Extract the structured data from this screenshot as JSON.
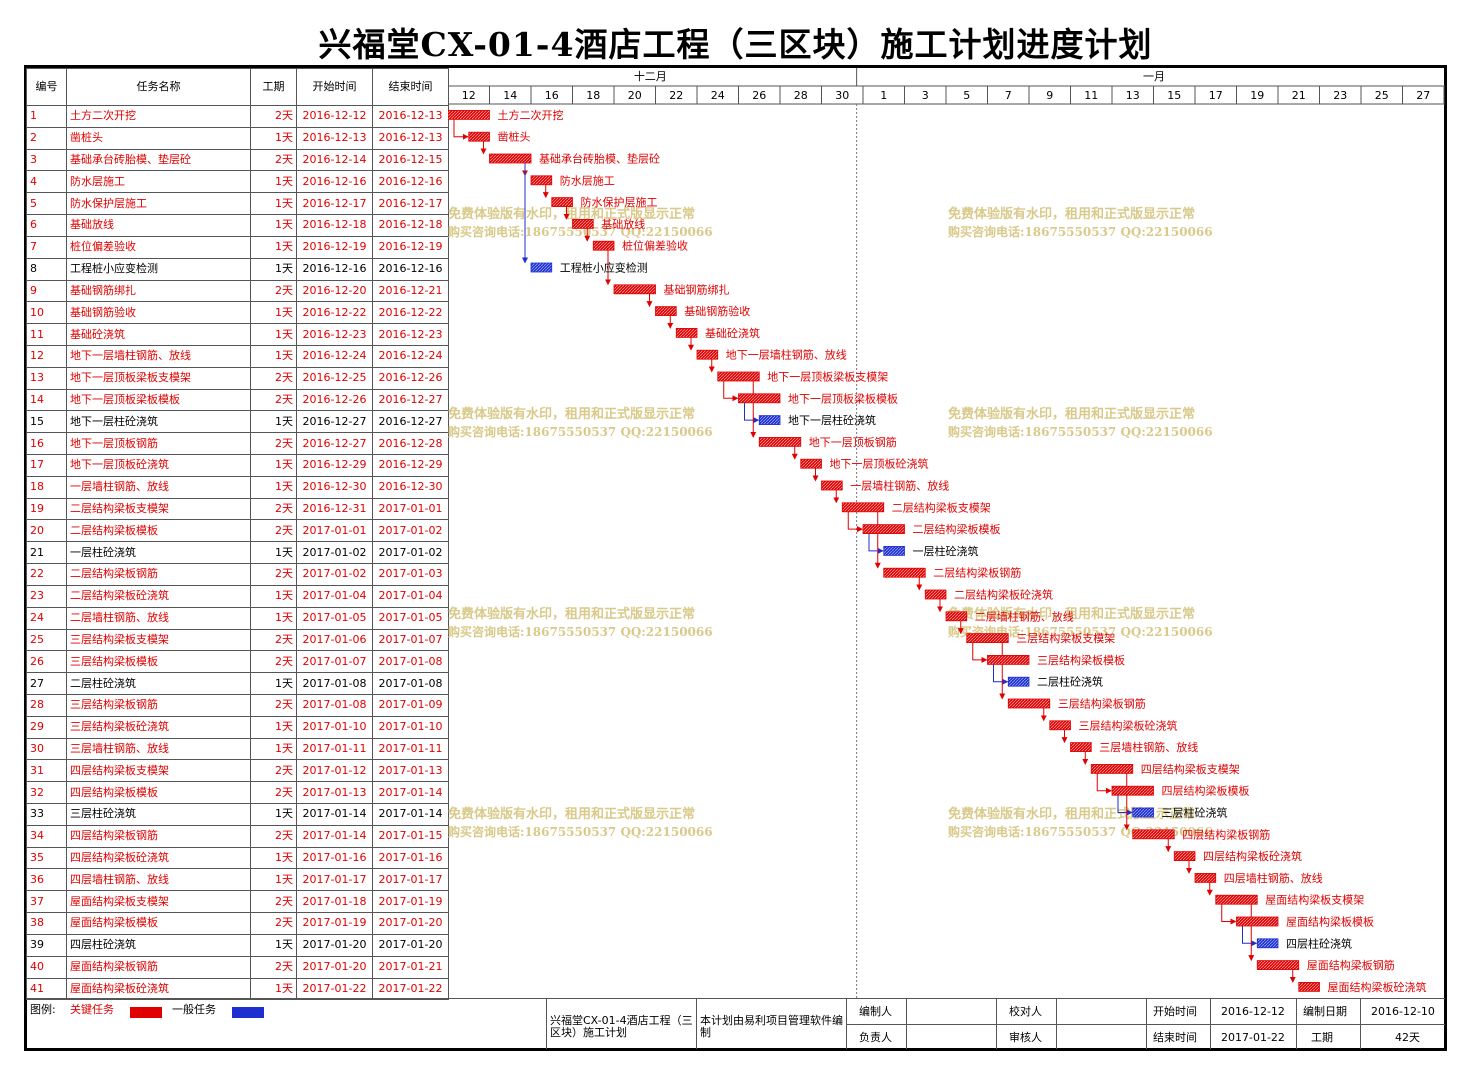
{
  "title": "兴福堂CX-01-4酒店工程（三区块）施工计划进度计划",
  "columns": {
    "no": "编号",
    "name": "任务名称",
    "dur": "工期",
    "start": "开始时间",
    "end": "结束时间"
  },
  "months": [
    "十二月",
    "一月"
  ],
  "day_labels": [
    "12",
    "14",
    "16",
    "18",
    "20",
    "22",
    "24",
    "26",
    "28",
    "30",
    "1",
    "3",
    "5",
    "7",
    "9",
    "11",
    "13",
    "15",
    "17",
    "19",
    "21",
    "23",
    "25",
    "27"
  ],
  "watermark": {
    "line1": "免费体验版有水印，租用和正式版显示正常",
    "line2": "购买咨询电话:18675550537 QQ:22150066"
  },
  "colors": {
    "critical": "#e00000",
    "normal": "#1f2fcf",
    "link_critical": "#e00000",
    "link_normal": "#1f2fcf",
    "watermark": "#d9c98a"
  },
  "chart_data": {
    "type": "gantt",
    "x_range": [
      "2016-12-12",
      "2017-01-28"
    ],
    "tasks": [
      {
        "no": "1",
        "name": "土方二次开挖",
        "dur": "2天",
        "start": "2016-12-12",
        "end": "2016-12-13",
        "critical": true,
        "pred": []
      },
      {
        "no": "2",
        "name": "凿桩头",
        "dur": "1天",
        "start": "2016-12-13",
        "end": "2016-12-13",
        "critical": true,
        "pred": [
          1
        ]
      },
      {
        "no": "3",
        "name": "基础承台砖胎模、垫层砼",
        "dur": "2天",
        "start": "2016-12-14",
        "end": "2016-12-15",
        "critical": true,
        "pred": [
          2
        ]
      },
      {
        "no": "4",
        "name": "防水层施工",
        "dur": "1天",
        "start": "2016-12-16",
        "end": "2016-12-16",
        "critical": true,
        "pred": [
          3
        ]
      },
      {
        "no": "5",
        "name": "防水保护层施工",
        "dur": "1天",
        "start": "2016-12-17",
        "end": "2016-12-17",
        "critical": true,
        "pred": [
          4
        ]
      },
      {
        "no": "6",
        "name": "基础放线",
        "dur": "1天",
        "start": "2016-12-18",
        "end": "2016-12-18",
        "critical": true,
        "pred": [
          5
        ]
      },
      {
        "no": "7",
        "name": "桩位偏差验收",
        "dur": "1天",
        "start": "2016-12-19",
        "end": "2016-12-19",
        "critical": true,
        "pred": [
          6
        ]
      },
      {
        "no": "8",
        "name": "工程桩小应变检测",
        "dur": "1天",
        "start": "2016-12-16",
        "end": "2016-12-16",
        "critical": false,
        "pred": [
          3
        ]
      },
      {
        "no": "9",
        "name": "基础钢筋绑扎",
        "dur": "2天",
        "start": "2016-12-20",
        "end": "2016-12-21",
        "critical": true,
        "pred": [
          7
        ]
      },
      {
        "no": "10",
        "name": "基础钢筋验收",
        "dur": "1天",
        "start": "2016-12-22",
        "end": "2016-12-22",
        "critical": true,
        "pred": [
          9
        ]
      },
      {
        "no": "11",
        "name": "基础砼浇筑",
        "dur": "1天",
        "start": "2016-12-23",
        "end": "2016-12-23",
        "critical": true,
        "pred": [
          10
        ]
      },
      {
        "no": "12",
        "name": "地下一层墙柱钢筋、放线",
        "dur": "1天",
        "start": "2016-12-24",
        "end": "2016-12-24",
        "critical": true,
        "pred": [
          11
        ]
      },
      {
        "no": "13",
        "name": "地下一层顶板梁板支模架",
        "dur": "2天",
        "start": "2016-12-25",
        "end": "2016-12-26",
        "critical": true,
        "pred": [
          12
        ]
      },
      {
        "no": "14",
        "name": "地下一层顶板梁板模板",
        "dur": "2天",
        "start": "2016-12-26",
        "end": "2016-12-27",
        "critical": true,
        "pred": [
          13
        ]
      },
      {
        "no": "15",
        "name": "地下一层柱砼浇筑",
        "dur": "1天",
        "start": "2016-12-27",
        "end": "2016-12-27",
        "critical": false,
        "pred": [
          14
        ]
      },
      {
        "no": "16",
        "name": "地下一层顶板钢筋",
        "dur": "2天",
        "start": "2016-12-27",
        "end": "2016-12-28",
        "critical": true,
        "pred": [
          13
        ]
      },
      {
        "no": "17",
        "name": "地下一层顶板砼浇筑",
        "dur": "1天",
        "start": "2016-12-29",
        "end": "2016-12-29",
        "critical": true,
        "pred": [
          16
        ]
      },
      {
        "no": "18",
        "name": "一层墙柱钢筋、放线",
        "dur": "1天",
        "start": "2016-12-30",
        "end": "2016-12-30",
        "critical": true,
        "pred": [
          17
        ]
      },
      {
        "no": "19",
        "name": "二层结构梁板支模架",
        "dur": "2天",
        "start": "2016-12-31",
        "end": "2017-01-01",
        "critical": true,
        "pred": [
          18
        ]
      },
      {
        "no": "20",
        "name": "二层结构梁板模板",
        "dur": "2天",
        "start": "2017-01-01",
        "end": "2017-01-02",
        "critical": true,
        "pred": [
          19
        ]
      },
      {
        "no": "21",
        "name": "一层柱砼浇筑",
        "dur": "1天",
        "start": "2017-01-02",
        "end": "2017-01-02",
        "critical": false,
        "pred": [
          20
        ]
      },
      {
        "no": "22",
        "name": "二层结构梁板钢筋",
        "dur": "2天",
        "start": "2017-01-02",
        "end": "2017-01-03",
        "critical": true,
        "pred": [
          19
        ]
      },
      {
        "no": "23",
        "name": "二层结构梁板砼浇筑",
        "dur": "1天",
        "start": "2017-01-04",
        "end": "2017-01-04",
        "critical": true,
        "pred": [
          22
        ]
      },
      {
        "no": "24",
        "name": "二层墙柱钢筋、放线",
        "dur": "1天",
        "start": "2017-01-05",
        "end": "2017-01-05",
        "critical": true,
        "pred": [
          23
        ]
      },
      {
        "no": "25",
        "name": "三层结构梁板支模架",
        "dur": "2天",
        "start": "2017-01-06",
        "end": "2017-01-07",
        "critical": true,
        "pred": [
          24
        ]
      },
      {
        "no": "26",
        "name": "三层结构梁板模板",
        "dur": "2天",
        "start": "2017-01-07",
        "end": "2017-01-08",
        "critical": true,
        "pred": [
          25
        ]
      },
      {
        "no": "27",
        "name": "二层柱砼浇筑",
        "dur": "1天",
        "start": "2017-01-08",
        "end": "2017-01-08",
        "critical": false,
        "pred": [
          26
        ]
      },
      {
        "no": "28",
        "name": "三层结构梁板钢筋",
        "dur": "2天",
        "start": "2017-01-08",
        "end": "2017-01-09",
        "critical": true,
        "pred": [
          25
        ]
      },
      {
        "no": "29",
        "name": "三层结构梁板砼浇筑",
        "dur": "1天",
        "start": "2017-01-10",
        "end": "2017-01-10",
        "critical": true,
        "pred": [
          28
        ]
      },
      {
        "no": "30",
        "name": "三层墙柱钢筋、放线",
        "dur": "1天",
        "start": "2017-01-11",
        "end": "2017-01-11",
        "critical": true,
        "pred": [
          29
        ]
      },
      {
        "no": "31",
        "name": "四层结构梁板支模架",
        "dur": "2天",
        "start": "2017-01-12",
        "end": "2017-01-13",
        "critical": true,
        "pred": [
          30
        ]
      },
      {
        "no": "32",
        "name": "四层结构梁板模板",
        "dur": "2天",
        "start": "2017-01-13",
        "end": "2017-01-14",
        "critical": true,
        "pred": [
          31
        ]
      },
      {
        "no": "33",
        "name": "三层柱砼浇筑",
        "dur": "1天",
        "start": "2017-01-14",
        "end": "2017-01-14",
        "critical": false,
        "pred": [
          32
        ]
      },
      {
        "no": "34",
        "name": "四层结构梁板钢筋",
        "dur": "2天",
        "start": "2017-01-14",
        "end": "2017-01-15",
        "critical": true,
        "pred": [
          31
        ]
      },
      {
        "no": "35",
        "name": "四层结构梁板砼浇筑",
        "dur": "1天",
        "start": "2017-01-16",
        "end": "2017-01-16",
        "critical": true,
        "pred": [
          34
        ]
      },
      {
        "no": "36",
        "name": "四层墙柱钢筋、放线",
        "dur": "1天",
        "start": "2017-01-17",
        "end": "2017-01-17",
        "critical": true,
        "pred": [
          35
        ]
      },
      {
        "no": "37",
        "name": "屋面结构梁板支模架",
        "dur": "2天",
        "start": "2017-01-18",
        "end": "2017-01-19",
        "critical": true,
        "pred": [
          36
        ]
      },
      {
        "no": "38",
        "name": "屋面结构梁板模板",
        "dur": "2天",
        "start": "2017-01-19",
        "end": "2017-01-20",
        "critical": true,
        "pred": [
          37
        ]
      },
      {
        "no": "39",
        "name": "四层柱砼浇筑",
        "dur": "1天",
        "start": "2017-01-20",
        "end": "2017-01-20",
        "critical": false,
        "pred": [
          38
        ]
      },
      {
        "no": "40",
        "name": "屋面结构梁板钢筋",
        "dur": "2天",
        "start": "2017-01-20",
        "end": "2017-01-21",
        "critical": true,
        "pred": [
          37
        ]
      },
      {
        "no": "41",
        "name": "屋面结构梁板砼浇筑",
        "dur": "1天",
        "start": "2017-01-22",
        "end": "2017-01-22",
        "critical": true,
        "pred": [
          40
        ]
      }
    ]
  },
  "footer": {
    "legend_label": "图例:",
    "legend_critical": "关键任务",
    "legend_normal": "一般任务",
    "project_name": "兴福堂CX-01-4酒店工程（三区块）施工计划",
    "software_note": "本计划由易利项目管理软件编制",
    "compiler_label": "编制人",
    "checker_label": "校对人",
    "start_label": "开始时间",
    "start_value": "2016-12-12",
    "date_label": "编制日期",
    "date_value": "2016-12-10",
    "owner_label": "负责人",
    "reviewer_label": "审核人",
    "end_label": "结束时间",
    "end_value": "2017-01-22",
    "dur_label": "工期",
    "dur_value": "42天"
  }
}
